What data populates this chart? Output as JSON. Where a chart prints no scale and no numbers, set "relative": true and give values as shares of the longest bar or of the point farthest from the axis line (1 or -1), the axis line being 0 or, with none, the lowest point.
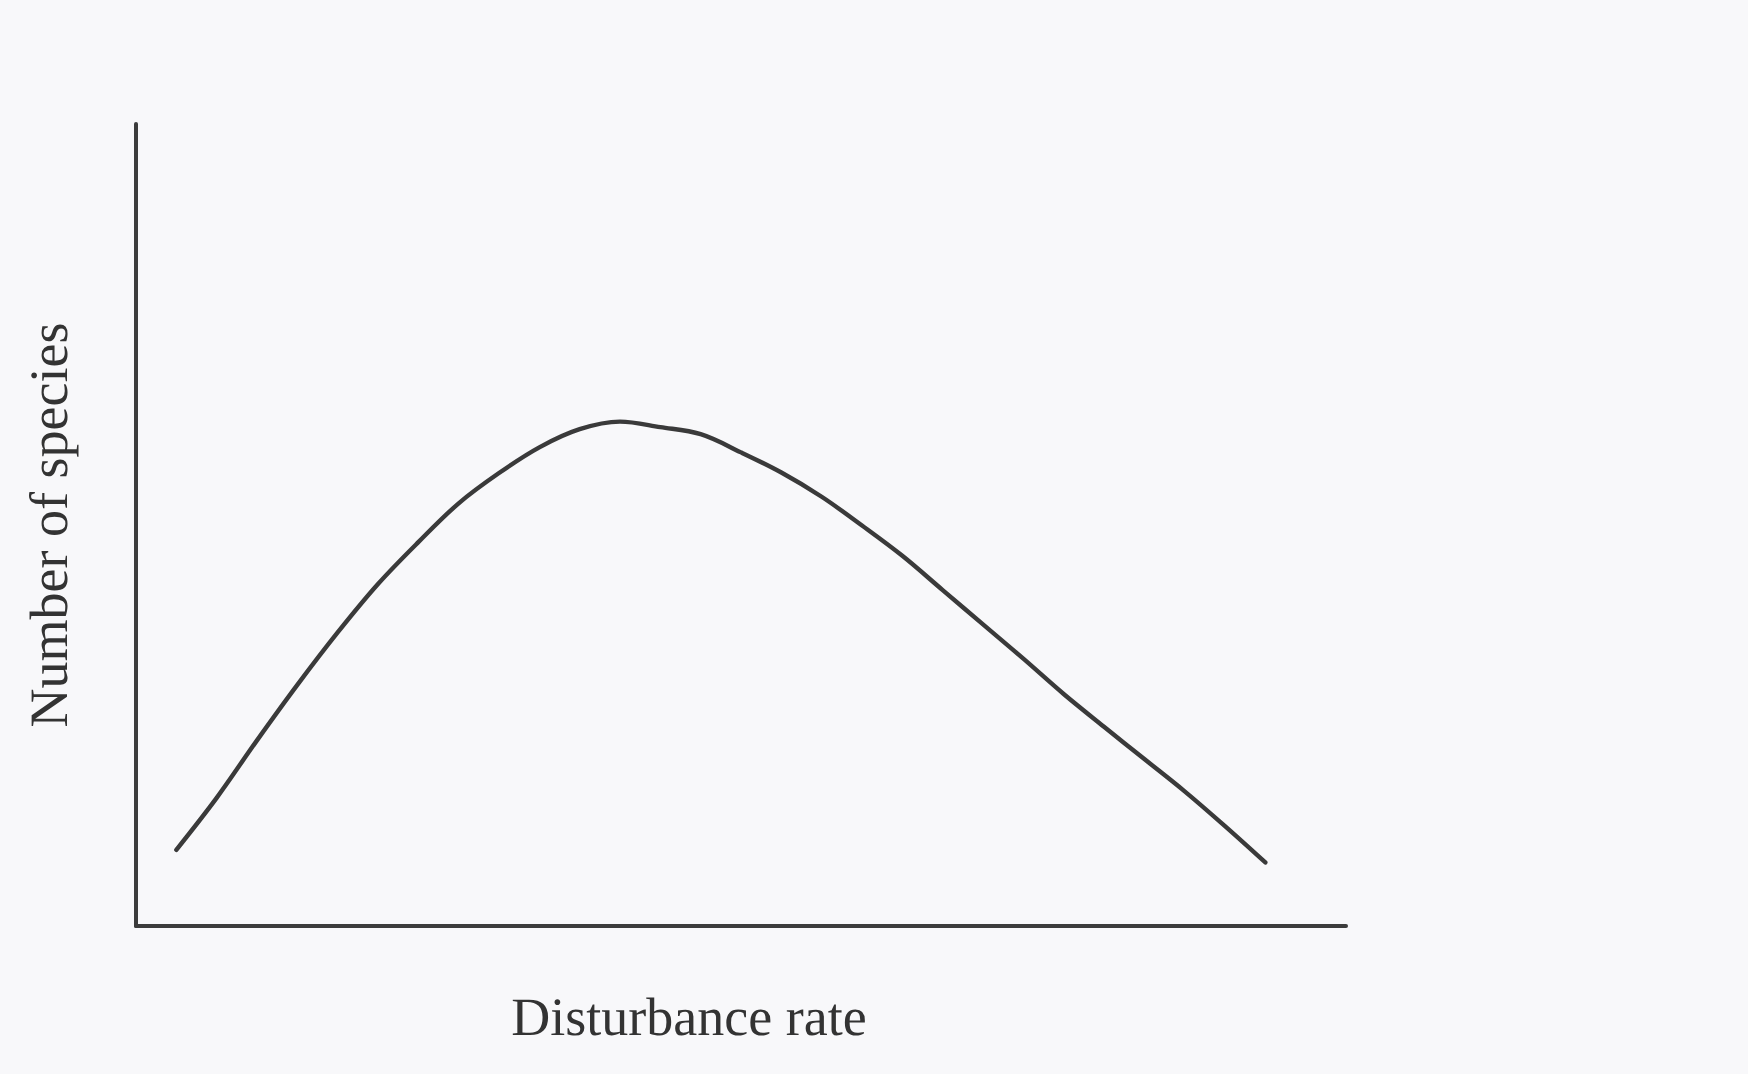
{
  "chart_data": {
    "type": "line",
    "xlabel": "Disturbance rate",
    "ylabel": "Number of species",
    "relative": true,
    "marker": "none",
    "categories": [
      null,
      null,
      null,
      null,
      null,
      null,
      null,
      null,
      null,
      null,
      null,
      null,
      null,
      null,
      null,
      null,
      null,
      null,
      null,
      null,
      null,
      null,
      null,
      null,
      null,
      null,
      null,
      null,
      null,
      null,
      null
    ],
    "series": [
      {
        "color": "#3a3a3a",
        "values": [
          null,
          0.151,
          0.254,
          0.368,
          0.478,
          0.582,
          0.678,
          0.761,
          0.838,
          0.898,
          0.949,
          0.985,
          1.0,
          0.989,
          0.975,
          0.939,
          0.899,
          0.851,
          0.794,
          0.734,
          0.666,
          0.598,
          0.53,
          0.46,
          0.395,
          0.331,
          0.267,
          0.198,
          0.126,
          null,
          null
        ]
      }
    ]
  }
}
